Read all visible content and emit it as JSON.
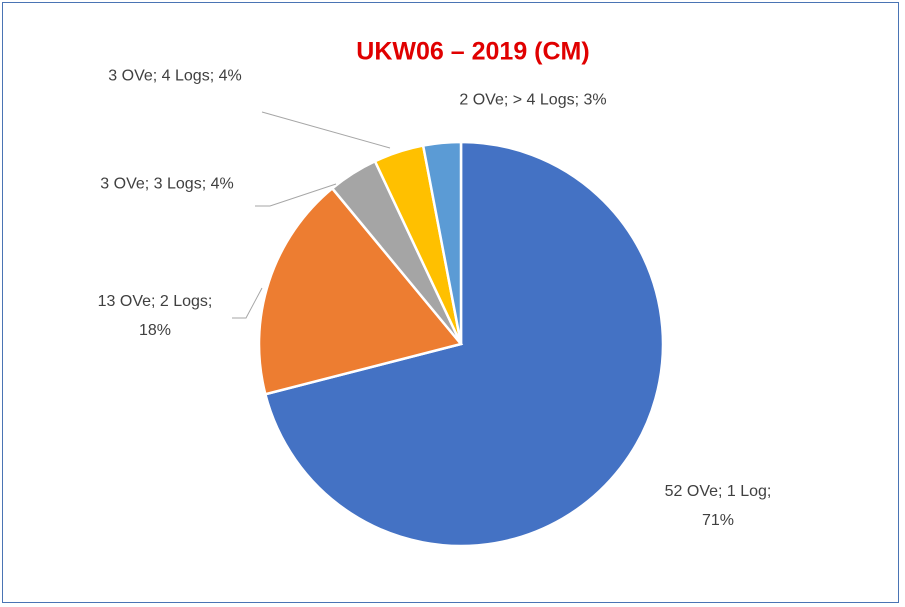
{
  "chart_data": {
    "type": "pie",
    "title": "UKW06 – 2019 (CM)",
    "values": [
      71,
      18,
      4,
      4,
      3
    ],
    "value_labels": [
      "52 OVe; 1 Log; 71%",
      "13 OVe; 2 Logs; 18%",
      "3 OVe; 3 Logs; 4%",
      "3 OVe; 4 Logs; 4%",
      "2 OVe; > 4 Logs; 3%"
    ],
    "colors": [
      "#4472c4",
      "#ed7d31",
      "#a5a5a5",
      "#ffc000",
      "#5b9bd5"
    ],
    "title_color": "#e00000"
  }
}
